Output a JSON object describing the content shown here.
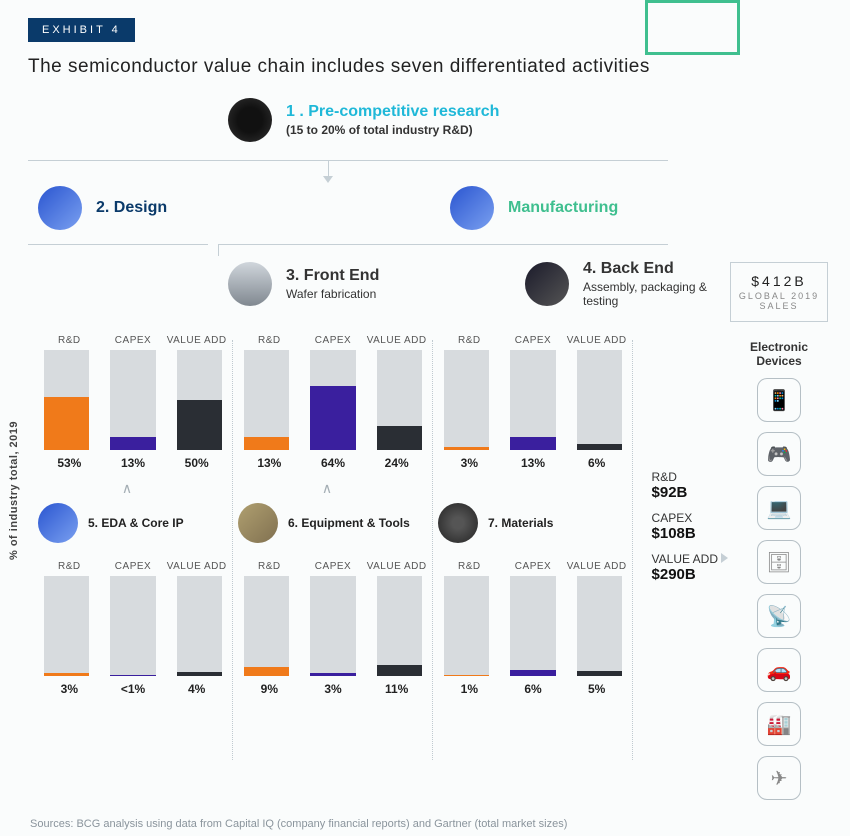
{
  "exhibit_label": "EXHIBIT 4",
  "title": "The semiconductor value chain includes seven differentiated activities",
  "flow": {
    "n1": {
      "num": "1 .",
      "label": "Pre-competitive research",
      "sub": "(15 to 20% of total industry R&D)"
    },
    "n2": {
      "num": "2.",
      "label": "Design"
    },
    "nManuf": {
      "label": "Manufacturing"
    },
    "n3": {
      "num": "3.",
      "label": "Front End",
      "sub": "Wafer fabrication"
    },
    "n4": {
      "num": "4.",
      "label": "Back End",
      "sub": "Assembly, packaging & testing"
    },
    "n5": {
      "num": "5.",
      "label": "EDA & Core IP"
    },
    "n6": {
      "num": "6.",
      "label": "Equipment & Tools"
    },
    "n7": {
      "num": "7.",
      "label": "Materials"
    }
  },
  "chart_meta": {
    "headers": [
      "R&D",
      "CAPEX",
      "VALUE ADD"
    ],
    "ylabel": "% of industry total, 2019",
    "bar_max": 100,
    "bar_bg": "#d7dbde",
    "colors": {
      "rd": "#f07a1a",
      "capex": "#3a1f9e",
      "va": "#2a2e34"
    }
  },
  "charts": {
    "design": {
      "rd": 53,
      "capex": 13,
      "va": 50,
      "labels": [
        "53%",
        "13%",
        "50%"
      ]
    },
    "frontend": {
      "rd": 13,
      "capex": 64,
      "va": 24,
      "labels": [
        "13%",
        "64%",
        "24%"
      ]
    },
    "backend": {
      "rd": 3,
      "capex": 13,
      "va": 6,
      "labels": [
        "3%",
        "13%",
        "6%"
      ]
    },
    "eda": {
      "rd": 3,
      "capex": 0.5,
      "va": 4,
      "labels": [
        "3%",
        "<1%",
        "4%"
      ]
    },
    "equip": {
      "rd": 9,
      "capex": 3,
      "va": 11,
      "labels": [
        "9%",
        "3%",
        "11%"
      ]
    },
    "materials": {
      "rd": 1,
      "capex": 6,
      "va": 5,
      "labels": [
        "1%",
        "6%",
        "5%"
      ]
    }
  },
  "totals": {
    "rd": {
      "label": "R&D",
      "value": "$92B"
    },
    "capex": {
      "label": "CAPEX",
      "value": "$108B"
    },
    "va": {
      "label": "VALUE ADD",
      "value": "$290B"
    }
  },
  "right": {
    "sales_value": "$412B",
    "sales_label": "GLOBAL 2019 SALES",
    "devices_header": "Electronic Devices",
    "devices": [
      "phone",
      "gamepad",
      "laptop",
      "server",
      "antenna",
      "car",
      "factory",
      "plane"
    ]
  },
  "source": "Sources: BCG analysis using data from Capital IQ (company financial reports) and Gartner (total market sizes)"
}
